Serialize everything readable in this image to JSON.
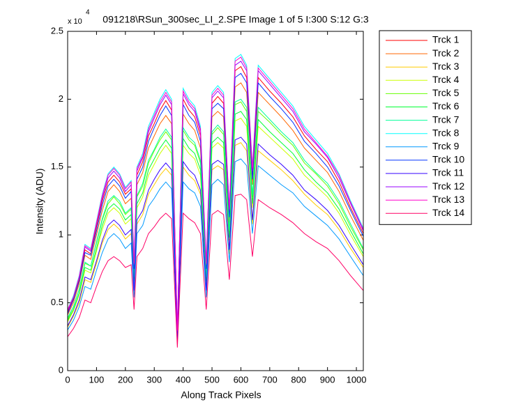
{
  "chart_data": {
    "type": "line",
    "title": "091218\\RSun_300sec_LI_2.SPE  Image 1 of 5  I:300  S:12  G:3",
    "y_multiplier": {
      "base": "x 10",
      "power": "4"
    },
    "x_label": "Along Track Pixels",
    "y_label": "Intensity (ADU)",
    "xlim": [
      0,
      1024
    ],
    "xticks": [
      0,
      100,
      200,
      300,
      400,
      500,
      600,
      700,
      800,
      900,
      1000
    ],
    "ylim": [
      0,
      2.5
    ],
    "yticks": [
      0,
      0.5,
      1,
      1.5,
      2,
      2.5
    ],
    "legend_position": "outside-right",
    "x": [
      0,
      20,
      40,
      60,
      80,
      100,
      120,
      140,
      160,
      180,
      200,
      220,
      230,
      240,
      260,
      280,
      300,
      320,
      340,
      360,
      380,
      400,
      420,
      440,
      460,
      480,
      500,
      520,
      540,
      560,
      580,
      600,
      620,
      640,
      660,
      700,
      740,
      780,
      820,
      860,
      900,
      940,
      980,
      1024
    ],
    "series": [
      {
        "name": "Trck 1",
        "color": "#ff0000",
        "values": [
          0.43,
          0.53,
          0.67,
          0.89,
          0.86,
          1.06,
          1.25,
          1.39,
          1.44,
          1.39,
          1.3,
          1.34,
          0.77,
          1.44,
          1.54,
          1.73,
          1.82,
          1.92,
          1.99,
          1.92,
          0.29,
          2.0,
          1.92,
          1.87,
          1.73,
          0.77,
          1.97,
          2.02,
          1.97,
          1.15,
          2.21,
          2.24,
          2.16,
          1.44,
          2.16,
          2.06,
          1.97,
          1.87,
          1.73,
          1.63,
          1.54,
          1.39,
          1.2,
          1.01
        ]
      },
      {
        "name": "Trck 2",
        "color": "#ff6600",
        "values": [
          0.41,
          0.5,
          0.64,
          0.85,
          0.82,
          1.0,
          1.18,
          1.32,
          1.37,
          1.32,
          1.23,
          1.27,
          0.73,
          1.37,
          1.46,
          1.64,
          1.73,
          1.82,
          1.88,
          1.82,
          0.27,
          1.89,
          1.82,
          1.77,
          1.64,
          0.73,
          1.87,
          1.91,
          1.87,
          1.09,
          2.09,
          2.12,
          2.05,
          1.37,
          2.05,
          1.96,
          1.87,
          1.77,
          1.64,
          1.55,
          1.46,
          1.32,
          1.14,
          0.96
        ]
      },
      {
        "name": "Trck 3",
        "color": "#ffcc00",
        "values": [
          0.32,
          0.4,
          0.5,
          0.67,
          0.65,
          0.79,
          0.94,
          1.04,
          1.08,
          1.04,
          0.97,
          1.01,
          0.58,
          1.08,
          1.15,
          1.3,
          1.37,
          1.44,
          1.49,
          1.44,
          0.22,
          1.5,
          1.44,
          1.4,
          1.3,
          0.58,
          1.48,
          1.51,
          1.48,
          0.86,
          1.66,
          1.68,
          1.62,
          1.08,
          1.62,
          1.55,
          1.48,
          1.4,
          1.3,
          1.22,
          1.15,
          1.04,
          0.9,
          0.76
        ]
      },
      {
        "name": "Trck 4",
        "color": "#ccff00",
        "values": [
          0.36,
          0.44,
          0.56,
          0.74,
          0.72,
          0.88,
          1.04,
          1.16,
          1.2,
          1.16,
          1.08,
          1.12,
          0.64,
          1.2,
          1.28,
          1.44,
          1.52,
          1.6,
          1.66,
          1.6,
          0.24,
          1.66,
          1.6,
          1.56,
          1.44,
          0.64,
          1.64,
          1.68,
          1.64,
          0.96,
          1.84,
          1.86,
          1.8,
          1.2,
          1.8,
          1.72,
          1.64,
          1.56,
          1.44,
          1.36,
          1.28,
          1.16,
          1.0,
          0.84
        ]
      },
      {
        "name": "Trck 5",
        "color": "#66ff00",
        "values": [
          0.38,
          0.47,
          0.6,
          0.79,
          0.77,
          0.94,
          1.11,
          1.23,
          1.28,
          1.23,
          1.15,
          1.19,
          0.68,
          1.28,
          1.36,
          1.53,
          1.62,
          1.7,
          1.76,
          1.7,
          0.26,
          1.77,
          1.7,
          1.66,
          1.53,
          0.68,
          1.74,
          1.79,
          1.74,
          1.02,
          1.96,
          1.98,
          1.91,
          1.28,
          1.91,
          1.83,
          1.74,
          1.66,
          1.53,
          1.45,
          1.36,
          1.23,
          1.06,
          0.89
        ]
      },
      {
        "name": "Trck 6",
        "color": "#00ff33",
        "values": [
          0.37,
          0.45,
          0.57,
          0.76,
          0.74,
          0.9,
          1.07,
          1.19,
          1.23,
          1.19,
          1.11,
          1.15,
          0.66,
          1.23,
          1.31,
          1.48,
          1.56,
          1.64,
          1.7,
          1.64,
          0.25,
          1.71,
          1.64,
          1.6,
          1.48,
          0.66,
          1.68,
          1.72,
          1.68,
          0.98,
          1.89,
          1.91,
          1.85,
          1.23,
          1.85,
          1.76,
          1.68,
          1.6,
          1.48,
          1.39,
          1.31,
          1.19,
          1.03,
          0.86
        ]
      },
      {
        "name": "Trck 7",
        "color": "#00ff99",
        "values": [
          0.39,
          0.47,
          0.6,
          0.8,
          0.77,
          0.95,
          1.12,
          1.25,
          1.29,
          1.25,
          1.16,
          1.2,
          0.69,
          1.29,
          1.38,
          1.55,
          1.63,
          1.72,
          1.78,
          1.72,
          0.26,
          1.79,
          1.72,
          1.68,
          1.55,
          0.69,
          1.76,
          1.81,
          1.76,
          1.03,
          1.98,
          2.0,
          1.94,
          1.29,
          1.94,
          1.85,
          1.76,
          1.68,
          1.55,
          1.46,
          1.38,
          1.25,
          1.08,
          0.9
        ]
      },
      {
        "name": "Trck 8",
        "color": "#00ffff",
        "values": [
          0.45,
          0.55,
          0.7,
          0.93,
          0.9,
          1.1,
          1.3,
          1.45,
          1.5,
          1.45,
          1.35,
          1.4,
          0.8,
          1.5,
          1.6,
          1.8,
          1.9,
          2.0,
          2.07,
          2.0,
          0.3,
          2.08,
          2.0,
          1.95,
          1.8,
          0.8,
          2.05,
          2.1,
          2.05,
          1.2,
          2.3,
          2.33,
          2.25,
          1.5,
          2.25,
          2.15,
          2.05,
          1.95,
          1.8,
          1.7,
          1.6,
          1.45,
          1.25,
          1.05
        ]
      },
      {
        "name": "Trck 9",
        "color": "#0099ff",
        "values": [
          0.3,
          0.37,
          0.47,
          0.62,
          0.6,
          0.74,
          0.87,
          0.97,
          1.01,
          0.97,
          0.9,
          0.94,
          0.54,
          1.01,
          1.07,
          1.21,
          1.27,
          1.34,
          1.39,
          1.34,
          0.2,
          1.39,
          1.34,
          1.31,
          1.21,
          0.54,
          1.37,
          1.41,
          1.37,
          0.8,
          1.54,
          1.56,
          1.51,
          1.01,
          1.51,
          1.44,
          1.37,
          1.31,
          1.21,
          1.14,
          1.07,
          0.97,
          0.84,
          0.7
        ]
      },
      {
        "name": "Trck 10",
        "color": "#0033ff",
        "values": [
          0.42,
          0.52,
          0.66,
          0.87,
          0.85,
          1.03,
          1.22,
          1.36,
          1.41,
          1.36,
          1.27,
          1.32,
          0.75,
          1.41,
          1.5,
          1.69,
          1.79,
          1.88,
          1.95,
          1.88,
          0.28,
          1.96,
          1.88,
          1.83,
          1.69,
          0.75,
          1.93,
          1.97,
          1.93,
          1.13,
          2.16,
          2.19,
          2.12,
          1.41,
          2.12,
          2.02,
          1.93,
          1.83,
          1.69,
          1.6,
          1.5,
          1.36,
          1.18,
          0.99
        ]
      },
      {
        "name": "Trck 11",
        "color": "#3300ff",
        "values": [
          0.33,
          0.41,
          0.52,
          0.69,
          0.67,
          0.81,
          0.96,
          1.07,
          1.11,
          1.07,
          1.0,
          1.04,
          0.59,
          1.11,
          1.18,
          1.33,
          1.41,
          1.48,
          1.53,
          1.48,
          0.22,
          1.54,
          1.48,
          1.44,
          1.33,
          0.59,
          1.52,
          1.55,
          1.52,
          0.89,
          1.7,
          1.72,
          1.67,
          1.11,
          1.67,
          1.59,
          1.52,
          1.44,
          1.33,
          1.26,
          1.18,
          1.07,
          0.93,
          0.78
        ]
      },
      {
        "name": "Trck 12",
        "color": "#9900ff",
        "values": [
          0.44,
          0.54,
          0.69,
          0.91,
          0.88,
          1.08,
          1.27,
          1.42,
          1.47,
          1.42,
          1.32,
          1.37,
          0.78,
          1.47,
          1.57,
          1.76,
          1.86,
          1.96,
          2.03,
          1.96,
          0.29,
          2.04,
          1.96,
          1.91,
          1.76,
          0.78,
          2.01,
          2.06,
          2.01,
          1.18,
          2.25,
          2.28,
          2.21,
          1.47,
          2.21,
          2.11,
          2.01,
          1.91,
          1.76,
          1.67,
          1.57,
          1.42,
          1.23,
          1.03
        ]
      },
      {
        "name": "Trck 13",
        "color": "#ff00cc",
        "values": [
          0.45,
          0.54,
          0.69,
          0.92,
          0.89,
          1.09,
          1.29,
          1.44,
          1.49,
          1.44,
          1.34,
          1.39,
          0.79,
          1.49,
          1.58,
          1.78,
          1.88,
          1.98,
          2.05,
          1.98,
          0.3,
          2.06,
          1.98,
          1.93,
          1.78,
          0.79,
          2.03,
          2.08,
          2.03,
          1.19,
          2.28,
          2.31,
          2.23,
          1.49,
          2.23,
          2.13,
          2.03,
          1.93,
          1.78,
          1.68,
          1.58,
          1.44,
          1.24,
          1.04
        ]
      },
      {
        "name": "Trck 14",
        "color": "#ff0066",
        "values": [
          0.25,
          0.31,
          0.39,
          0.52,
          0.5,
          0.62,
          0.73,
          0.81,
          0.84,
          0.81,
          0.76,
          0.78,
          0.45,
          0.84,
          0.9,
          1.01,
          1.06,
          1.12,
          1.16,
          1.12,
          0.17,
          1.16,
          1.12,
          1.09,
          1.01,
          0.45,
          1.15,
          1.18,
          1.15,
          0.67,
          1.29,
          1.3,
          1.26,
          0.84,
          1.26,
          1.2,
          1.15,
          1.09,
          1.01,
          0.95,
          0.9,
          0.81,
          0.7,
          0.59
        ]
      }
    ]
  }
}
